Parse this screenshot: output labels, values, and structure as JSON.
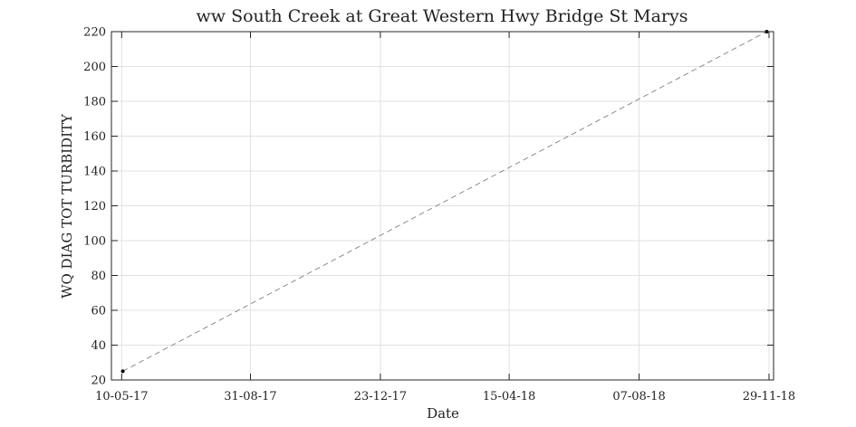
{
  "chart_data": {
    "type": "line",
    "title": "ww South Creek at Great Western Hwy Bridge St Marys",
    "xlabel": "Date",
    "ylabel": "WQ DIAG TOT TURBIDITY",
    "x_ticks": [
      "10-05-17",
      "31-08-17",
      "23-12-17",
      "15-04-18",
      "07-08-18",
      "29-11-18"
    ],
    "y_ticks": [
      "20",
      "40",
      "60",
      "80",
      "100",
      "120",
      "140",
      "160",
      "180",
      "200",
      "220"
    ],
    "xlim": [
      "2017-05-01",
      "2018-12-03"
    ],
    "ylim": [
      20,
      220
    ],
    "grid": true,
    "series": [
      {
        "points": [
          {
            "x": "2017-05-11",
            "y": 25
          },
          {
            "x": "2018-11-27",
            "y": 220
          }
        ],
        "line_style": "dashed",
        "line_color": "#8c8c8c",
        "marker_color": "#000000"
      }
    ]
  }
}
